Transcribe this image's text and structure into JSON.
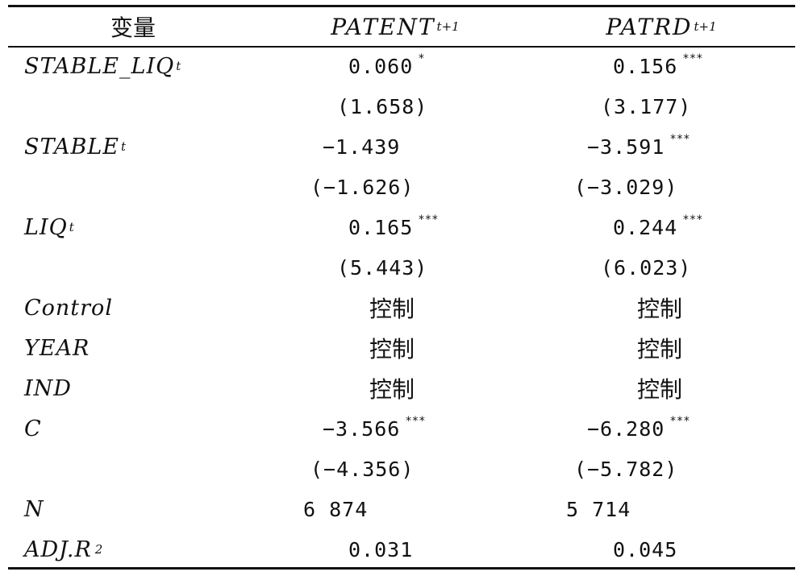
{
  "header": {
    "col0": "变量",
    "col1": {
      "main": "PATENT",
      "sub": "t+1"
    },
    "col2": {
      "main": "PATRD",
      "sub": "t+1"
    }
  },
  "rows": [
    {
      "label": "STABLE_LIQ",
      "label_sub": "t",
      "v1": "0.060",
      "s1": "*",
      "v2": "0.156",
      "s2": "***"
    },
    {
      "label": "",
      "v1": "(1.658)",
      "v2": "(3.177)"
    },
    {
      "label": "STABLE",
      "label_sub": "t",
      "v1": "−1.439",
      "v2": "−3.591",
      "s2": "***"
    },
    {
      "label": "",
      "v1": "(−1.626)",
      "v2": "(−3.029)"
    },
    {
      "label": "LIQ",
      "label_sub": "t",
      "v1": "0.165",
      "s1": "***",
      "v2": "0.244",
      "s2": "***"
    },
    {
      "label": "",
      "v1": "(5.443)",
      "v2": "(6.023)"
    },
    {
      "label": "Control",
      "v1": "控制",
      "v2": "控制"
    },
    {
      "label": "YEAR",
      "v1": "控制",
      "v2": "控制"
    },
    {
      "label": "IND",
      "v1": "控制",
      "v2": "控制"
    },
    {
      "label": "C",
      "v1": "−3.566",
      "s1": "***",
      "v2": "−6.280",
      "s2": "***"
    },
    {
      "label": "",
      "v1": "(−4.356)",
      "v2": "(−5.782)"
    },
    {
      "label": "N",
      "v1": "6 874",
      "v2": "5 714"
    },
    {
      "label": "ADJ.R",
      "label_sup": "2",
      "v1": "0.031",
      "v2": "0.045"
    }
  ]
}
